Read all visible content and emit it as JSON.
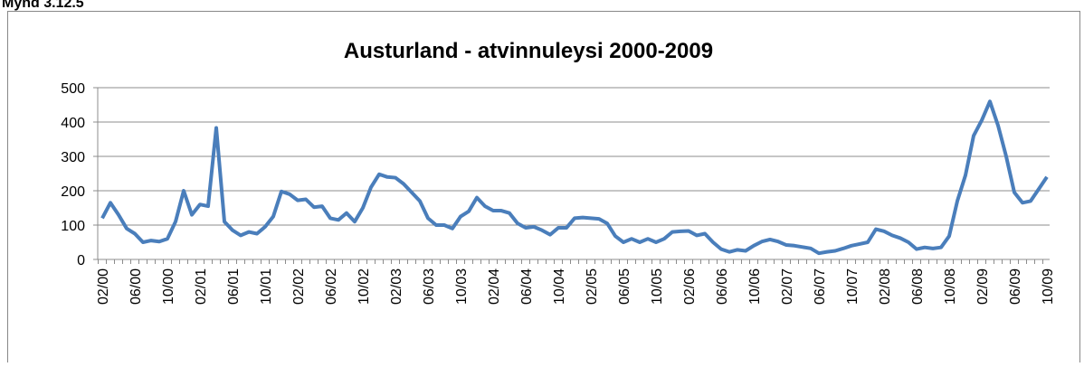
{
  "caption": "Mynd 3.12.5",
  "chart_data": {
    "type": "line",
    "title": "Austurland - atvinnuleysi 2000-2009",
    "categories": [
      "02/00",
      null,
      null,
      null,
      "06/00",
      null,
      null,
      null,
      "10/00",
      null,
      null,
      null,
      "02/01",
      null,
      null,
      null,
      "06/01",
      null,
      null,
      null,
      "10/01",
      null,
      null,
      null,
      "02/02",
      null,
      null,
      null,
      "06/02",
      null,
      null,
      null,
      "10/02",
      null,
      null,
      null,
      "02/03",
      null,
      null,
      null,
      "06/03",
      null,
      null,
      null,
      "10/03",
      null,
      null,
      null,
      "02/04",
      null,
      null,
      null,
      "06/04",
      null,
      null,
      null,
      "10/04",
      null,
      null,
      null,
      "02/05",
      null,
      null,
      null,
      "06/05",
      null,
      null,
      null,
      "10/05",
      null,
      null,
      null,
      "02/06",
      null,
      null,
      null,
      "06/06",
      null,
      null,
      null,
      "10/06",
      null,
      null,
      null,
      "02/07",
      null,
      null,
      null,
      "06/07",
      null,
      null,
      null,
      "10/07",
      null,
      null,
      null,
      "02/08",
      null,
      null,
      null,
      "06/08",
      null,
      null,
      null,
      "10/08",
      null,
      null,
      null,
      "02/09",
      null,
      null,
      null,
      "06/09",
      null,
      null,
      null,
      "10/09"
    ],
    "values": [
      120,
      165,
      130,
      90,
      75,
      50,
      55,
      52,
      60,
      110,
      200,
      130,
      160,
      155,
      383,
      110,
      85,
      70,
      80,
      75,
      95,
      125,
      198,
      190,
      172,
      175,
      152,
      155,
      120,
      115,
      135,
      110,
      150,
      210,
      248,
      240,
      238,
      220,
      195,
      170,
      120,
      100,
      100,
      90,
      125,
      140,
      180,
      155,
      142,
      142,
      135,
      105,
      92,
      95,
      85,
      72,
      92,
      92,
      120,
      122,
      120,
      118,
      105,
      68,
      50,
      60,
      50,
      60,
      50,
      60,
      80,
      82,
      83,
      70,
      75,
      50,
      30,
      22,
      28,
      25,
      40,
      52,
      58,
      52,
      42,
      40,
      36,
      32,
      18,
      22,
      25,
      32,
      40,
      45,
      50,
      88,
      82,
      70,
      62,
      50,
      30,
      35,
      32,
      35,
      68,
      170,
      245,
      360,
      405,
      460,
      390,
      300,
      195,
      165,
      170,
      205,
      240
    ],
    "color": "#4a7ebb",
    "ylim": [
      0,
      500
    ],
    "yticks": [
      0,
      100,
      200,
      300,
      400,
      500
    ],
    "grid": true
  }
}
